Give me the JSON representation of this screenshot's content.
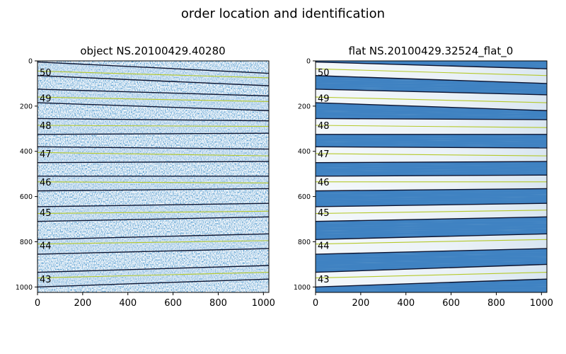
{
  "figure": {
    "suptitle": "order location and identification"
  },
  "chart_data": [
    {
      "type": "image",
      "title": "object NS.20100429.40280",
      "xlim": [
        0,
        1024
      ],
      "ylim": [
        1024,
        0
      ],
      "xticks": [
        0,
        200,
        400,
        600,
        800,
        1000
      ],
      "yticks": [
        0,
        200,
        400,
        600,
        800,
        1000
      ],
      "colormap": "Blues",
      "image_style": "noisy",
      "order_labels": [
        {
          "order": "50",
          "y": 50
        },
        {
          "order": "49",
          "y": 165
        },
        {
          "order": "48",
          "y": 285
        },
        {
          "order": "47",
          "y": 410
        },
        {
          "order": "46",
          "y": 535
        },
        {
          "order": "45",
          "y": 670
        },
        {
          "order": "44",
          "y": 815
        },
        {
          "order": "43",
          "y": 965
        }
      ],
      "order_edges": [
        {
          "y0": 5,
          "y1": 55
        },
        {
          "y0": 65,
          "y1": 110
        },
        {
          "y0": 125,
          "y1": 155
        },
        {
          "y0": 185,
          "y1": 220
        },
        {
          "y0": 255,
          "y1": 265
        },
        {
          "y0": 325,
          "y1": 320
        },
        {
          "y0": 380,
          "y1": 390
        },
        {
          "y0": 450,
          "y1": 445
        },
        {
          "y0": 510,
          "y1": 510
        },
        {
          "y0": 575,
          "y1": 565
        },
        {
          "y0": 645,
          "y1": 630
        },
        {
          "y0": 710,
          "y1": 690
        },
        {
          "y0": 790,
          "y1": 765
        },
        {
          "y0": 855,
          "y1": 830
        },
        {
          "y0": 935,
          "y1": 905
        },
        {
          "y0": 1000,
          "y1": 965
        }
      ],
      "order_centers": [
        {
          "y0": 45,
          "y1": 75
        },
        {
          "y0": 160,
          "y1": 180
        },
        {
          "y0": 285,
          "y1": 290
        },
        {
          "y0": 405,
          "y1": 420
        },
        {
          "y0": 535,
          "y1": 540
        },
        {
          "y0": 675,
          "y1": 665
        },
        {
          "y0": 810,
          "y1": 795
        },
        {
          "y0": 960,
          "y1": 935
        }
      ]
    },
    {
      "type": "image",
      "title": "flat NS.20100429.32524_flat_0",
      "xlim": [
        0,
        1024
      ],
      "ylim": [
        1024,
        0
      ],
      "xticks": [
        0,
        200,
        400,
        600,
        800,
        1000
      ],
      "yticks": [
        0,
        200,
        400,
        600,
        800,
        1000
      ],
      "colormap": "Blues",
      "image_style": "flat",
      "order_labels": [
        {
          "order": "50",
          "y": 50
        },
        {
          "order": "49",
          "y": 165
        },
        {
          "order": "48",
          "y": 285
        },
        {
          "order": "47",
          "y": 410
        },
        {
          "order": "46",
          "y": 535
        },
        {
          "order": "45",
          "y": 670
        },
        {
          "order": "44",
          "y": 815
        },
        {
          "order": "43",
          "y": 965
        }
      ],
      "order_edges": [
        {
          "y0": 5,
          "y1": 35
        },
        {
          "y0": 65,
          "y1": 100
        },
        {
          "y0": 125,
          "y1": 150
        },
        {
          "y0": 185,
          "y1": 220
        },
        {
          "y0": 255,
          "y1": 260
        },
        {
          "y0": 325,
          "y1": 325
        },
        {
          "y0": 380,
          "y1": 385
        },
        {
          "y0": 450,
          "y1": 445
        },
        {
          "y0": 510,
          "y1": 505
        },
        {
          "y0": 575,
          "y1": 565
        },
        {
          "y0": 645,
          "y1": 630
        },
        {
          "y0": 710,
          "y1": 690
        },
        {
          "y0": 790,
          "y1": 765
        },
        {
          "y0": 855,
          "y1": 830
        },
        {
          "y0": 935,
          "y1": 900
        },
        {
          "y0": 1000,
          "y1": 965
        }
      ],
      "order_centers": [
        {
          "y0": 35,
          "y1": 65
        },
        {
          "y0": 160,
          "y1": 185
        },
        {
          "y0": 285,
          "y1": 295
        },
        {
          "y0": 410,
          "y1": 420
        },
        {
          "y0": 535,
          "y1": 535
        },
        {
          "y0": 675,
          "y1": 660
        },
        {
          "y0": 810,
          "y1": 790
        },
        {
          "y0": 960,
          "y1": 935
        }
      ]
    }
  ],
  "colors": {
    "edge_line": "#0d1430",
    "center_line": "#b5c92a",
    "flat_band": "#3f82c2",
    "gap": "#eef3f8"
  }
}
